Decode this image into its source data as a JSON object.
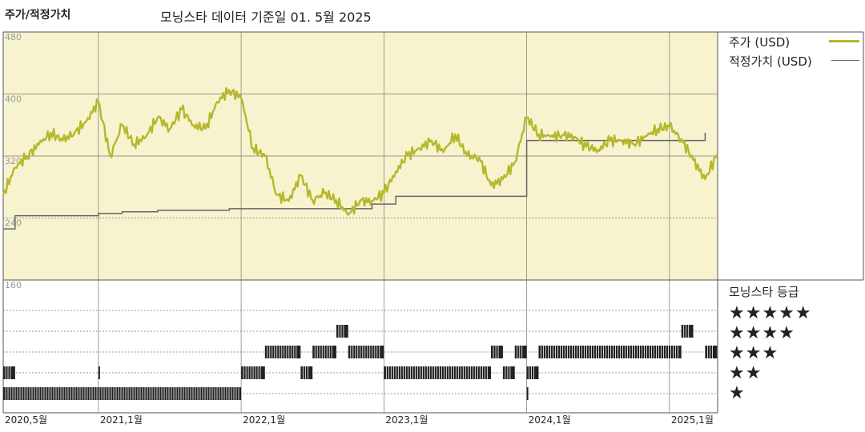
{
  "header": {
    "title": "주가/적정가치",
    "subtitle": "모닝스타 데이터 기준일 01. 5월 2025"
  },
  "legend": {
    "price_label": "주가 (USD)",
    "fair_value_label": "적정가치 (USD)",
    "rating_title": "모닝스타 등급",
    "star_rows": [
      "★★★★★",
      "★★★★",
      "★★★",
      "★★",
      "★"
    ]
  },
  "colors": {
    "price": "#b5b82a",
    "fair_value": "#666666",
    "plot_bg": "#f7f3cf",
    "grid": "#777777",
    "rating_bar": "#222222"
  },
  "chart_data": {
    "type": "line",
    "title": "주가/적정가치",
    "subtitle": "모닝스타 데이터 기준일 01. 5월 2025",
    "x_tick_labels": [
      "2020,5월",
      "2021,1월",
      "2022,1월",
      "2023,1월",
      "2024,1월",
      "2025,1월"
    ],
    "x_tick_dates": [
      "2020-05",
      "2021-01",
      "2022-01",
      "2023-01",
      "2024-01",
      "2025-01"
    ],
    "y_tick_labels": [
      "480",
      "400",
      "320",
      "240",
      "160"
    ],
    "ylim": [
      160,
      480
    ],
    "y_grid_dotted": [
      240
    ],
    "grid": true,
    "series": [
      {
        "name": "주가 (USD)",
        "x": [
          "2020-05",
          "2020-06",
          "2020-07",
          "2020-08",
          "2020-09",
          "2020-10",
          "2020-11",
          "2020-12",
          "2021-01",
          "2021-02",
          "2021-03",
          "2021-04",
          "2021-05",
          "2021-06",
          "2021-07",
          "2021-08",
          "2021-09",
          "2021-10",
          "2021-11",
          "2021-12",
          "2022-01",
          "2022-02",
          "2022-03",
          "2022-04",
          "2022-05",
          "2022-06",
          "2022-07",
          "2022-08",
          "2022-09",
          "2022-10",
          "2022-11",
          "2022-12",
          "2023-01",
          "2023-02",
          "2023-03",
          "2023-04",
          "2023-05",
          "2023-06",
          "2023-07",
          "2023-08",
          "2023-09",
          "2023-10",
          "2023-11",
          "2023-12",
          "2024-01",
          "2024-02",
          "2024-03",
          "2024-04",
          "2024-05",
          "2024-06",
          "2024-07",
          "2024-08",
          "2024-09",
          "2024-10",
          "2024-11",
          "2024-12",
          "2025-01",
          "2025-02",
          "2025-03",
          "2025-04",
          "2025-05"
        ],
        "y": [
          270,
          305,
          320,
          335,
          350,
          340,
          350,
          365,
          390,
          320,
          360,
          335,
          345,
          370,
          355,
          380,
          360,
          355,
          390,
          405,
          395,
          330,
          320,
          270,
          262,
          295,
          263,
          272,
          263,
          244,
          262,
          262,
          272,
          300,
          321,
          330,
          340,
          325,
          348,
          320,
          318,
          282,
          290,
          312,
          370,
          348,
          345,
          347,
          345,
          332,
          328,
          340,
          340,
          335,
          345,
          355,
          358,
          342,
          315,
          290,
          322
        ]
      },
      {
        "name": "적정가치 (USD)",
        "x": [
          "2020-05",
          "2020-06",
          "2020-12",
          "2021-01",
          "2021-03",
          "2021-06",
          "2021-12",
          "2022-01",
          "2022-06",
          "2022-12",
          "2023-01",
          "2023-02",
          "2023-12",
          "2024-01",
          "2024-05",
          "2024-12",
          "2025-01",
          "2025-04"
        ],
        "y": [
          226,
          243,
          243,
          246,
          248,
          250,
          252,
          252,
          252,
          258,
          258,
          268,
          268,
          340,
          340,
          340,
          340,
          350
        ]
      }
    ],
    "rating_bands": {
      "rows": [
        "★★★★★",
        "★★★★",
        "★★★",
        "★★",
        "★"
      ],
      "segments": [
        {
          "stars": 1,
          "from": "2020-05",
          "to": "2022-01"
        },
        {
          "stars": 2,
          "from": "2020-05",
          "to": "2020-06"
        },
        {
          "stars": 2,
          "from": "2021-01",
          "to": "2021-01"
        },
        {
          "stars": 2,
          "from": "2022-01",
          "to": "2022-03"
        },
        {
          "stars": 3,
          "from": "2022-03",
          "to": "2022-06"
        },
        {
          "stars": 2,
          "from": "2022-06",
          "to": "2022-07"
        },
        {
          "stars": 3,
          "from": "2022-07",
          "to": "2022-09"
        },
        {
          "stars": 4,
          "from": "2022-09",
          "to": "2022-10"
        },
        {
          "stars": 3,
          "from": "2022-10",
          "to": "2023-01"
        },
        {
          "stars": 2,
          "from": "2023-01",
          "to": "2023-10"
        },
        {
          "stars": 3,
          "from": "2023-10",
          "to": "2023-11"
        },
        {
          "stars": 2,
          "from": "2023-11",
          "to": "2023-12"
        },
        {
          "stars": 3,
          "from": "2023-12",
          "to": "2024-01"
        },
        {
          "stars": 2,
          "from": "2024-01",
          "to": "2024-01"
        },
        {
          "stars": 1,
          "from": "2024-01",
          "to": "2024-01"
        },
        {
          "stars": 2,
          "from": "2024-01",
          "to": "2024-02"
        },
        {
          "stars": 3,
          "from": "2024-02",
          "to": "2025-02"
        },
        {
          "stars": 4,
          "from": "2025-02",
          "to": "2025-03"
        },
        {
          "stars": 3,
          "from": "2025-04",
          "to": "2025-05"
        }
      ]
    }
  }
}
